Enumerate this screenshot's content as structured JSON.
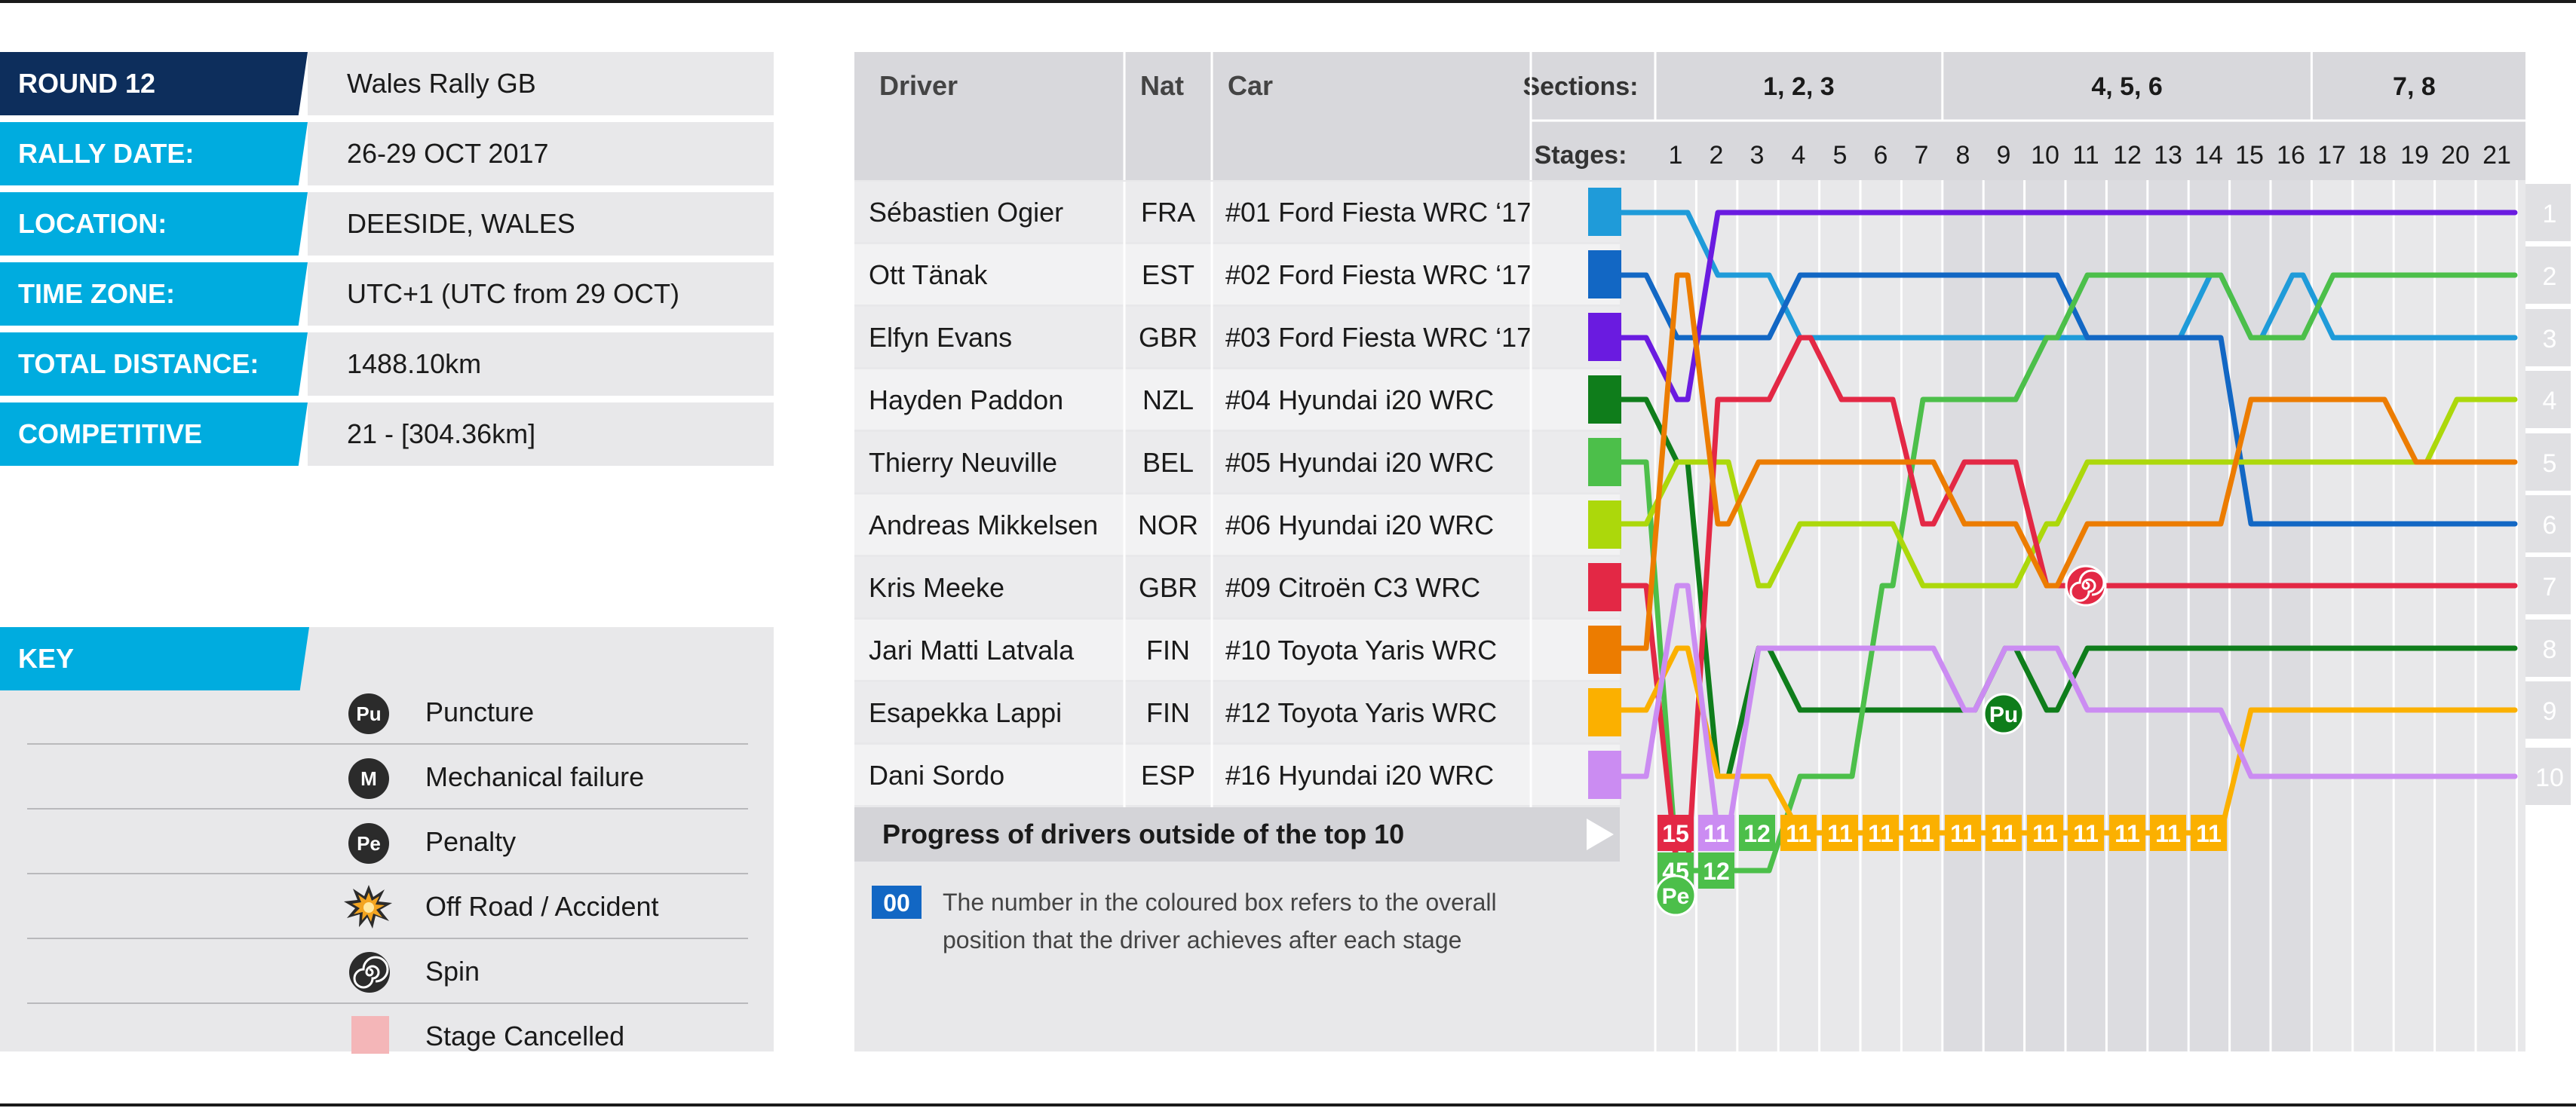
{
  "info": [
    {
      "label": "ROUND 12",
      "value": "Wales Rally GB"
    },
    {
      "label": "RALLY DATE:",
      "value": "26-29 OCT 2017"
    },
    {
      "label": "LOCATION:",
      "value": "DEESIDE, WALES"
    },
    {
      "label": "TIME ZONE:",
      "value": "UTC+1 (UTC from 29 OCT)"
    },
    {
      "label": "TOTAL DISTANCE:",
      "value": "1488.10km"
    },
    {
      "label": "COMPETITIVE STAGES:",
      "value": "21 - [304.36km]"
    }
  ],
  "key": {
    "title": "KEY",
    "items": [
      {
        "icon": "puncture-icon",
        "symbol": "Pu",
        "label": "Puncture"
      },
      {
        "icon": "mechanical-failure-icon",
        "symbol": "M",
        "label": "Mechanical failure"
      },
      {
        "icon": "penalty-icon",
        "symbol": "Pe",
        "label": "Penalty"
      },
      {
        "icon": "off-road-accident-icon",
        "symbol": "",
        "label": "Off Road / Accident"
      },
      {
        "icon": "spin-icon",
        "symbol": "",
        "label": "Spin"
      },
      {
        "icon": "stage-cancelled-icon",
        "symbol": "",
        "label": "Stage Cancelled"
      }
    ]
  },
  "chart_data": {
    "type": "line",
    "headers": {
      "driver": "Driver",
      "nat": "Nat",
      "car": "Car",
      "sections": "Sections:",
      "stages": "Stages:"
    },
    "sections": [
      {
        "label": "1, 2, 3",
        "from": 1,
        "to": 7
      },
      {
        "label": "4, 5, 6",
        "from": 8,
        "to": 16
      },
      {
        "label": "7, 8",
        "from": 17,
        "to": 21
      }
    ],
    "stages": [
      1,
      2,
      3,
      4,
      5,
      6,
      7,
      8,
      9,
      10,
      11,
      12,
      13,
      14,
      15,
      16,
      17,
      18,
      19,
      20,
      21
    ],
    "final_positions": [
      1,
      2,
      3,
      4,
      5,
      6,
      7,
      8,
      9,
      10
    ],
    "drivers": [
      {
        "name": "Sébastien Ogier",
        "nat": "FRA",
        "car": "#01  Ford Fiesta WRC ‘17",
        "color": "#1f9bd9",
        "positions": [
          1,
          1,
          2,
          2,
          3,
          3,
          3,
          3,
          3,
          3,
          3,
          3,
          3,
          3,
          2,
          3,
          2,
          3,
          3,
          3,
          3,
          3
        ]
      },
      {
        "name": "Ott Tänak",
        "nat": "EST",
        "car": "#02  Ford Fiesta WRC ‘17",
        "color": "#1267c4",
        "positions": [
          2,
          3,
          3,
          3,
          2,
          2,
          2,
          2,
          2,
          2,
          2,
          3,
          3,
          3,
          3,
          6,
          6,
          6,
          6,
          6,
          6,
          6
        ]
      },
      {
        "name": "Elfyn Evans",
        "nat": "GBR",
        "car": "#03  Ford Fiesta WRC ‘17",
        "color": "#6a1be0",
        "positions": [
          3,
          4,
          1,
          1,
          1,
          1,
          1,
          1,
          1,
          1,
          1,
          1,
          1,
          1,
          1,
          1,
          1,
          1,
          1,
          1,
          1,
          1
        ]
      },
      {
        "name": "Hayden Paddon",
        "nat": "NZL",
        "car": "#04  Hyundai i20 WRC",
        "color": "#0f7d1b",
        "positions": [
          4,
          5,
          10,
          8,
          9,
          9,
          9,
          9,
          9,
          8,
          9,
          8,
          8,
          8,
          8,
          8,
          8,
          8,
          8,
          8,
          8,
          8
        ]
      },
      {
        "name": "Thierry Neuville",
        "nat": "BEL",
        "car": "#05  Hyundai i20 WRC",
        "color": "#4cbf4a",
        "positions": [
          5,
          45,
          12,
          12,
          10,
          10,
          7,
          4,
          4,
          4,
          3,
          2,
          2,
          2,
          2,
          3,
          3,
          2,
          2,
          2,
          2,
          2
        ]
      },
      {
        "name": "Andreas Mikkelsen",
        "nat": "NOR",
        "car": "#06  Hyundai i20 WRC",
        "color": "#acd80b",
        "positions": [
          6,
          5,
          5,
          7,
          6,
          6,
          6,
          7,
          7,
          7,
          6,
          5,
          5,
          5,
          5,
          5,
          5,
          5,
          5,
          5,
          4,
          4
        ]
      },
      {
        "name": "Kris Meeke",
        "nat": "GBR",
        "car": "#09  Citroën C3 WRC",
        "color": "#e32845",
        "positions": [
          7,
          15,
          4,
          4,
          3,
          4,
          4,
          6,
          5,
          5,
          7,
          7,
          7,
          7,
          7,
          7,
          7,
          7,
          7,
          7,
          7,
          7
        ]
      },
      {
        "name": "Jari Matti Latvala",
        "nat": "FIN",
        "car": "#10  Toyota Yaris WRC",
        "color": "#ec7c00",
        "positions": [
          8,
          2,
          6,
          5,
          5,
          5,
          5,
          5,
          6,
          6,
          7,
          6,
          6,
          6,
          6,
          4,
          4,
          4,
          4,
          5,
          5,
          5
        ]
      },
      {
        "name": "Esapekka Lappi",
        "nat": "FIN",
        "car": "#12  Toyota Yaris WRC",
        "color": "#fbb000",
        "positions": [
          9,
          8,
          10,
          10,
          11,
          11,
          11,
          11,
          11,
          11,
          11,
          11,
          11,
          11,
          11,
          9,
          9,
          9,
          9,
          9,
          9,
          9
        ]
      },
      {
        "name": "Dani Sordo",
        "nat": "ESP",
        "car": "#16  Hyundai i20 WRC",
        "color": "#cb8cf2",
        "positions": [
          10,
          7,
          11,
          8,
          8,
          8,
          8,
          8,
          9,
          8,
          8,
          9,
          9,
          9,
          9,
          10,
          10,
          10,
          10,
          10,
          10,
          10
        ]
      }
    ],
    "outside_row_label": "Progress of drivers outside of the top 10",
    "legend_box": "00",
    "legend_text_1": "The number in the coloured box refers to the overall",
    "legend_text_2": "position that the driver achieves after each stage",
    "incidents": [
      {
        "driver": "Thierry Neuville",
        "stage": 1,
        "symbol": "Pe",
        "type": "Penalty"
      },
      {
        "driver": "Hayden Paddon",
        "stage": 9,
        "symbol": "Pu",
        "type": "Puncture"
      },
      {
        "driver": "Kris Meeke",
        "stage": 11,
        "symbol": "",
        "type": "Spin"
      }
    ]
  }
}
